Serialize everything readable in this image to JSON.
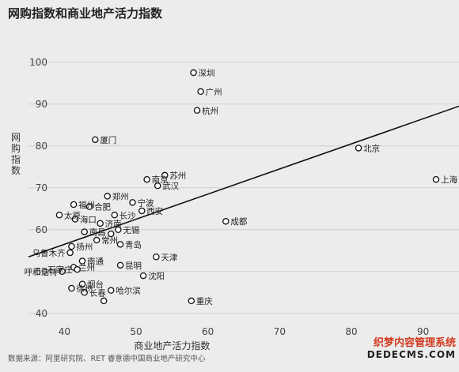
{
  "page": {
    "title": "网购指数和商业地产活力指数",
    "source": "数据来源：阿里研究院、RET 睿意德中国商业地产研究中心",
    "watermark_line1": "织梦内容管理系统",
    "watermark_line2": "DEDECMS.COM"
  },
  "chart_data": {
    "type": "scatter",
    "title": "网购指数和商业地产活力指数",
    "xlabel": "商业地产活力指数",
    "ylabel": "网购指数",
    "xlim": [
      35,
      95
    ],
    "ylim": [
      36,
      106
    ],
    "xticks": [
      40,
      50,
      60,
      70,
      80,
      90
    ],
    "yticks": [
      40,
      50,
      60,
      70,
      80,
      90,
      100
    ],
    "grid": "horizontal",
    "trendline": {
      "x": [
        35,
        95
      ],
      "y": [
        53.5,
        89.5
      ]
    },
    "points": [
      {
        "label": "深圳",
        "x": 58.0,
        "y": 97.5
      },
      {
        "label": "广州",
        "x": 59.0,
        "y": 93.0
      },
      {
        "label": "杭州",
        "x": 58.5,
        "y": 88.5
      },
      {
        "label": "厦门",
        "x": 44.3,
        "y": 81.5
      },
      {
        "label": "北京",
        "x": 81.0,
        "y": 79.5
      },
      {
        "label": "上海",
        "x": 91.8,
        "y": 72.0
      },
      {
        "label": "苏州",
        "x": 54.0,
        "y": 73.0
      },
      {
        "label": "南京",
        "x": 51.5,
        "y": 72.0
      },
      {
        "label": "武汉",
        "x": 53.0,
        "y": 70.5
      },
      {
        "label": "郑州",
        "x": 46.0,
        "y": 68.0
      },
      {
        "label": "宁波",
        "x": 49.5,
        "y": 66.5
      },
      {
        "label": "福州",
        "x": 41.3,
        "y": 66.0
      },
      {
        "label": "合肥",
        "x": 43.5,
        "y": 65.5
      },
      {
        "label": "太原",
        "x": 39.3,
        "y": 63.5
      },
      {
        "label": "西安",
        "x": 50.8,
        "y": 64.5
      },
      {
        "label": "长沙",
        "x": 47.0,
        "y": 63.5
      },
      {
        "label": "成都",
        "x": 62.5,
        "y": 62.0
      },
      {
        "label": "海口",
        "x": 41.5,
        "y": 62.5
      },
      {
        "label": "济南",
        "x": 45.0,
        "y": 61.5
      },
      {
        "label": "南昌",
        "x": 42.8,
        "y": 59.5
      },
      {
        "label": "无锡",
        "x": 47.5,
        "y": 60.0
      },
      {
        "label": "重庆",
        "x": 57.7,
        "y": 43.0
      },
      {
        "label": "青岛",
        "x": 47.8,
        "y": 56.5
      },
      {
        "label": "常州",
        "x": 44.5,
        "y": 57.5
      },
      {
        "label": "宁波2",
        "x": 46.5,
        "y": 59.0
      },
      {
        "label": "扬州",
        "x": 41.0,
        "y": 56.0
      },
      {
        "label": "天津",
        "x": 52.8,
        "y": 53.5
      },
      {
        "label": "乌鲁木齐",
        "x": 40.8,
        "y": 54.5
      },
      {
        "label": "南通",
        "x": 42.5,
        "y": 52.5
      },
      {
        "label": "兰州",
        "x": 41.3,
        "y": 51.0
      },
      {
        "label": "昆明",
        "x": 47.8,
        "y": 51.5
      },
      {
        "label": "呼和浩特",
        "x": 39.7,
        "y": 50.0
      },
      {
        "label": "石家庄",
        "x": 41.8,
        "y": 50.5
      },
      {
        "label": "沈阳",
        "x": 51.0,
        "y": 49.0
      },
      {
        "label": "烟台",
        "x": 42.5,
        "y": 47.0
      },
      {
        "label": "徐州",
        "x": 41.0,
        "y": 46.0
      },
      {
        "label": "长春",
        "x": 42.8,
        "y": 45.0
      },
      {
        "label": "哈尔滨",
        "x": 46.5,
        "y": 45.5
      },
      {
        "label": "扬州2",
        "x": 45.5,
        "y": 43.0
      }
    ],
    "display_labels": [
      "深圳",
      "广州",
      "杭州",
      "厦门",
      "北京",
      "上海",
      "苏州",
      "南京",
      "武汉",
      "郑州",
      "宁波",
      "福州",
      "合肥",
      "太原",
      "西安",
      "长沙",
      "成都",
      "海口",
      "济南",
      "南昌",
      "无锡",
      "重庆",
      "青岛",
      "常州",
      "扬州",
      "天津",
      "乌鲁木齐",
      "南通",
      "兰州",
      "昆明",
      "呼和浩特",
      "石家庄",
      "沈阳",
      "烟台",
      "徐州",
      "长春",
      "哈尔滨"
    ]
  }
}
